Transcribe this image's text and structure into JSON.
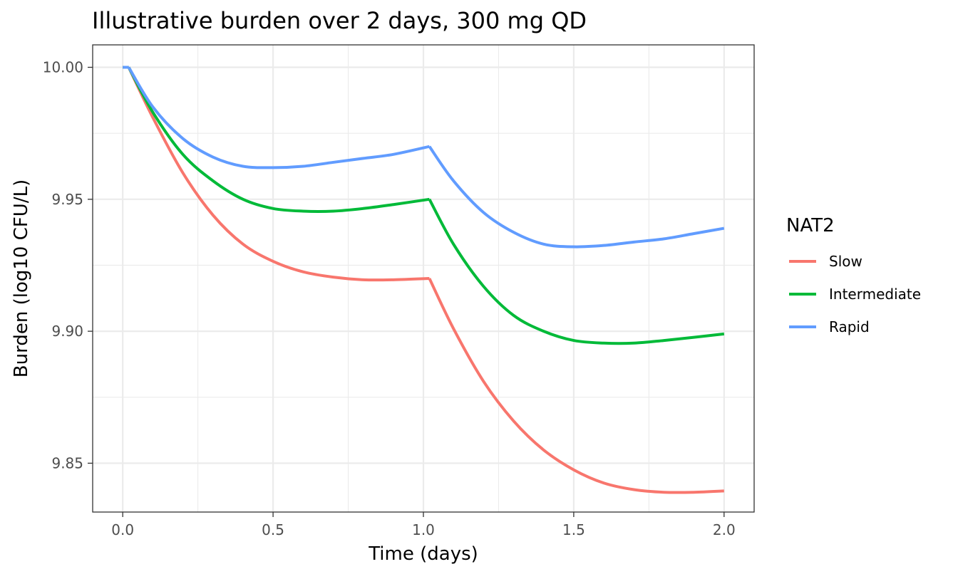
{
  "chart_data": {
    "type": "line",
    "title": "Illustrative burden over 2 days, 300 mg QD",
    "xlabel": "Time (days)",
    "ylabel": "Burden (log10 CFU/L)",
    "xlim": [
      -0.1,
      2.1
    ],
    "ylim": [
      9.8315,
      10.0085
    ],
    "x_ticks": [
      0.0,
      0.5,
      1.0,
      1.5,
      2.0
    ],
    "x_tick_labels": [
      "0.0",
      "0.5",
      "1.0",
      "1.5",
      "2.0"
    ],
    "y_ticks": [
      9.85,
      9.9,
      9.95,
      10.0
    ],
    "y_tick_labels": [
      "9.85",
      "9.90",
      "9.95",
      "10.00"
    ],
    "grid": true,
    "legend": {
      "title": "NAT2",
      "position": "right"
    },
    "series": [
      {
        "name": "Slow",
        "color": "#F8766D",
        "points": [
          [
            0.0,
            10.0
          ],
          [
            0.02,
            10.0
          ],
          [
            0.1,
            9.981
          ],
          [
            0.2,
            9.96
          ],
          [
            0.3,
            9.944
          ],
          [
            0.4,
            9.933
          ],
          [
            0.5,
            9.9265
          ],
          [
            0.6,
            9.9225
          ],
          [
            0.7,
            9.9205
          ],
          [
            0.8,
            9.9195
          ],
          [
            0.9,
            9.9195
          ],
          [
            1.02,
            9.92
          ],
          [
            1.1,
            9.901
          ],
          [
            1.2,
            9.881
          ],
          [
            1.3,
            9.866
          ],
          [
            1.4,
            9.855
          ],
          [
            1.5,
            9.8475
          ],
          [
            1.6,
            9.8425
          ],
          [
            1.7,
            9.84
          ],
          [
            1.8,
            9.839
          ],
          [
            1.9,
            9.839
          ],
          [
            2.0,
            9.8395
          ]
        ]
      },
      {
        "name": "Intermediate",
        "color": "#00BA38",
        "points": [
          [
            0.0,
            10.0
          ],
          [
            0.02,
            10.0
          ],
          [
            0.1,
            9.983
          ],
          [
            0.2,
            9.967
          ],
          [
            0.3,
            9.957
          ],
          [
            0.4,
            9.95
          ],
          [
            0.5,
            9.9465
          ],
          [
            0.6,
            9.9455
          ],
          [
            0.7,
            9.9455
          ],
          [
            0.8,
            9.9465
          ],
          [
            0.9,
            9.948
          ],
          [
            1.02,
            9.95
          ],
          [
            1.1,
            9.933
          ],
          [
            1.2,
            9.917
          ],
          [
            1.3,
            9.906
          ],
          [
            1.4,
            9.9
          ],
          [
            1.5,
            9.8965
          ],
          [
            1.6,
            9.8955
          ],
          [
            1.7,
            9.8955
          ],
          [
            1.8,
            9.8965
          ],
          [
            1.9,
            9.8977
          ],
          [
            2.0,
            9.899
          ]
        ]
      },
      {
        "name": "Rapid",
        "color": "#619CFF",
        "points": [
          [
            0.0,
            10.0
          ],
          [
            0.02,
            10.0
          ],
          [
            0.1,
            9.985
          ],
          [
            0.2,
            9.973
          ],
          [
            0.3,
            9.966
          ],
          [
            0.4,
            9.9625
          ],
          [
            0.5,
            9.962
          ],
          [
            0.6,
            9.9625
          ],
          [
            0.7,
            9.964
          ],
          [
            0.8,
            9.9655
          ],
          [
            0.9,
            9.967
          ],
          [
            1.02,
            9.97
          ],
          [
            1.1,
            9.957
          ],
          [
            1.2,
            9.945
          ],
          [
            1.3,
            9.9375
          ],
          [
            1.4,
            9.933
          ],
          [
            1.5,
            9.932
          ],
          [
            1.6,
            9.9325
          ],
          [
            1.7,
            9.9338
          ],
          [
            1.8,
            9.935
          ],
          [
            1.9,
            9.937
          ],
          [
            2.0,
            9.939
          ]
        ]
      }
    ]
  }
}
